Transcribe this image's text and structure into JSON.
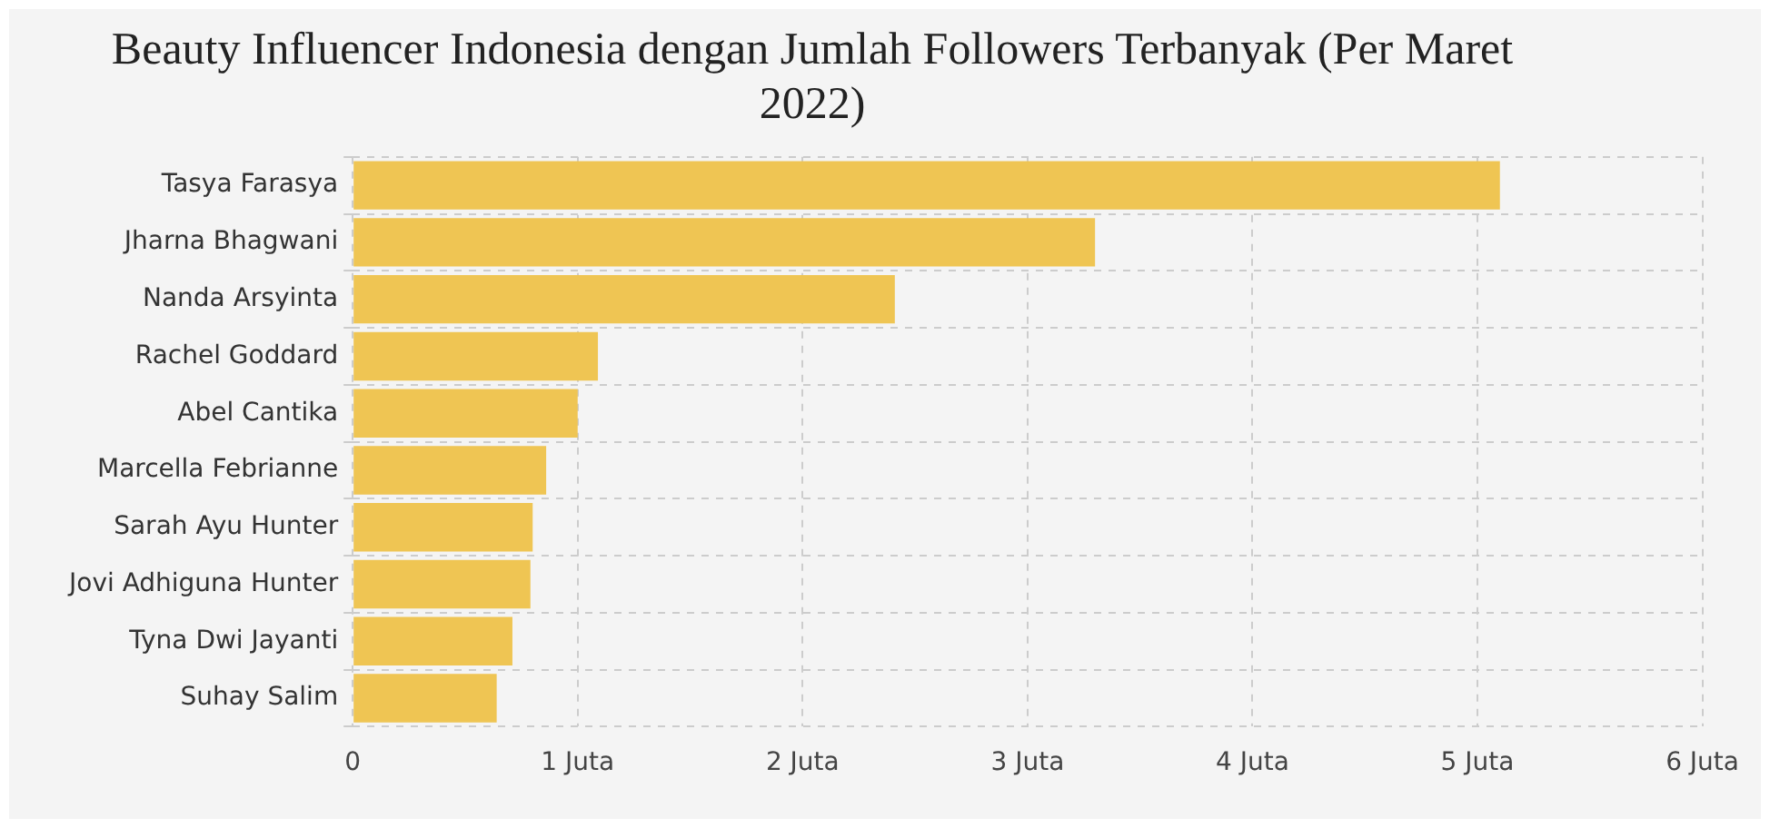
{
  "chart_data": {
    "type": "bar",
    "orientation": "horizontal",
    "title": "Beauty Influencer Indonesia dengan Jumlah Followers Terbanyak (Per Maret 2022)",
    "categories": [
      "Tasya Farasya",
      "Jharna Bhagwani",
      "Nanda Arsyinta",
      "Rachel Goddard",
      "Abel Cantika",
      "Marcella Febrianne",
      "Sarah Ayu Hunter",
      "Jovi Adhiguna Hunter",
      "Tyna Dwi Jayanti",
      "Suhay Salim"
    ],
    "values": [
      5.1,
      3.3,
      2.41,
      1.09,
      1.0,
      0.86,
      0.8,
      0.79,
      0.71,
      0.64
    ],
    "color": "#efc553",
    "xlim": [
      0,
      6
    ],
    "xticks": [
      0,
      {
        "value": 1,
        "label": "1 Juta"
      },
      {
        "value": 2,
        "label": "2 Juta"
      },
      {
        "value": 3,
        "label": "3 Juta"
      },
      {
        "value": 4,
        "label": "4 Juta"
      },
      {
        "value": 5,
        "label": "5 Juta"
      },
      {
        "value": 6,
        "label": "6 Juta"
      }
    ],
    "grid": true,
    "legend": false
  }
}
